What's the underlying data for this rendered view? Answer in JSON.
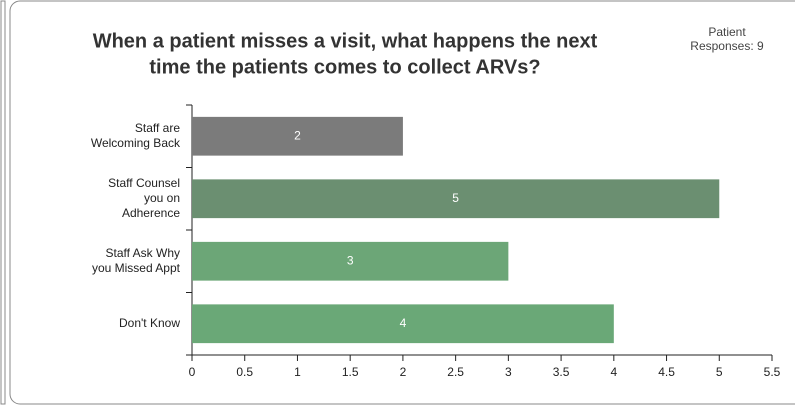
{
  "chart_data": {
    "type": "bar",
    "orientation": "horizontal",
    "title": [
      "When a patient misses a visit, what happens the next",
      "time the patients comes to collect ARVs?"
    ],
    "annotation": [
      "Patient",
      "Responses: 9"
    ],
    "categories": [
      [
        "Staff are",
        "Welcoming Back"
      ],
      [
        "Staff Counsel",
        "you on",
        "Adherence"
      ],
      [
        "Staff Ask Why",
        "you Missed Appt"
      ],
      [
        "Don't Know"
      ]
    ],
    "values": [
      2,
      5,
      3,
      4
    ],
    "colors": [
      "#7b7b7b",
      "#6b8f71",
      "#6ca677",
      "#6aa877"
    ],
    "xlim": [
      0,
      5.5
    ],
    "xticks": [
      0,
      0.5,
      1,
      1.5,
      2,
      2.5,
      3,
      3.5,
      4,
      4.5,
      5,
      5.5
    ]
  }
}
